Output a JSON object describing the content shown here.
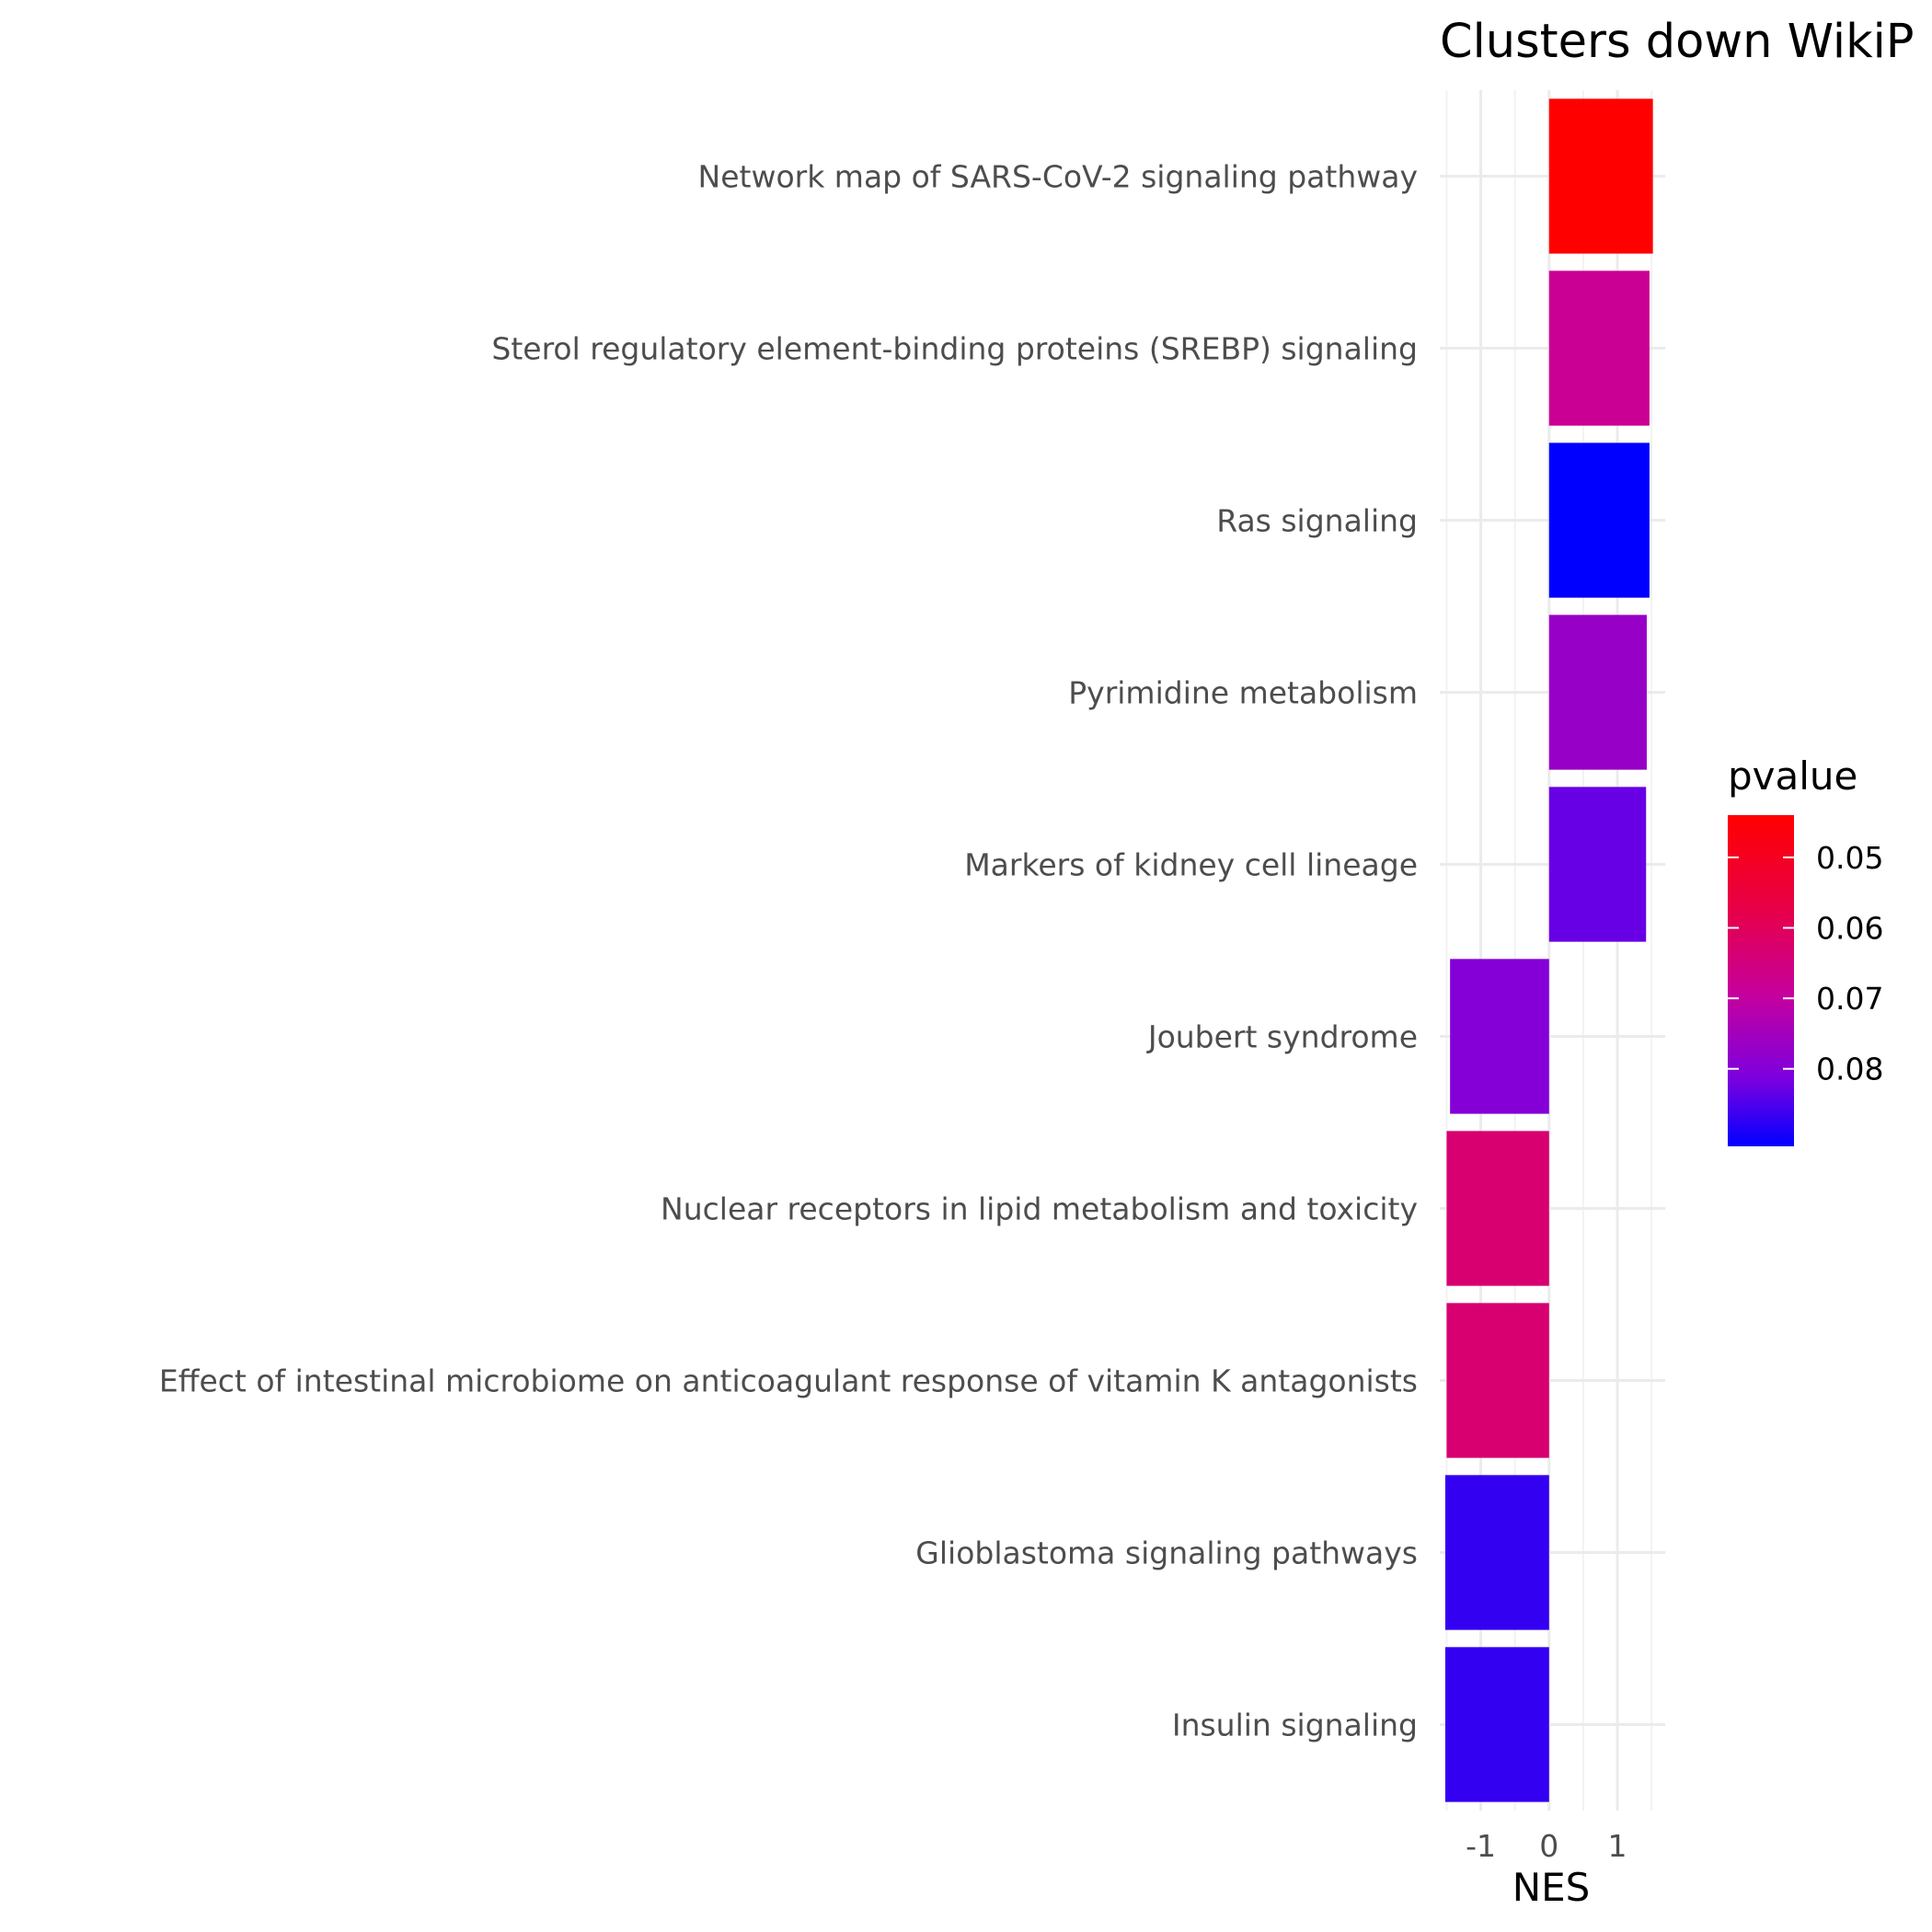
{
  "chart_data": {
    "type": "bar",
    "orientation": "horizontal",
    "title": "Clusters down WikiP",
    "xlabel": "NES",
    "ylabel": "",
    "xlim": [
      -1.6,
      1.7
    ],
    "x_ticks": [
      -1,
      0,
      1
    ],
    "x_tick_labels": [
      "-1",
      "0",
      "1"
    ],
    "grid": true,
    "categories": [
      "Network map of SARS-CoV-2 signaling pathway",
      "Sterol regulatory element-binding proteins (SREBP) signaling",
      "Ras signaling",
      "Pyrimidine metabolism",
      "Markers of kidney cell lineage",
      "Joubert syndrome",
      "Nuclear receptors in lipid metabolism and toxicity",
      "Effect of intestinal microbiome on anticoagulant response of vitamin K antagonists",
      "Glioblastoma signaling pathways",
      "Insulin signaling"
    ],
    "values": [
      1.52,
      1.47,
      1.47,
      1.43,
      1.42,
      -1.45,
      -1.5,
      -1.5,
      -1.52,
      -1.52
    ],
    "pvalue": [
      0.044,
      0.068,
      0.091,
      0.077,
      0.083,
      0.08,
      0.063,
      0.063,
      0.087,
      0.087
    ],
    "legend": {
      "title": "pvalue",
      "position": "right",
      "range": [
        0.044,
        0.091
      ],
      "ticks": [
        0.05,
        0.06,
        0.07,
        0.08
      ],
      "tick_labels": [
        "0.05",
        "0.06",
        "0.07",
        "0.08"
      ],
      "low_color": "#ff0000",
      "high_color": "#0000ff"
    }
  }
}
